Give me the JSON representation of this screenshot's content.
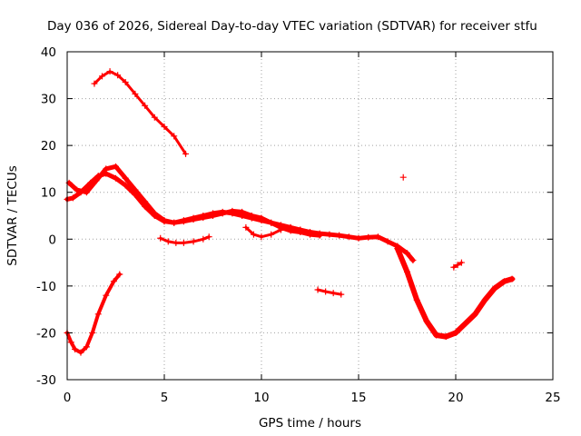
{
  "chart_data": {
    "type": "scatter",
    "title": "Day 036 of 2026, Sidereal Day-to-day VTEC variation (SDTVAR) for receiver stfu",
    "xlabel": "GPS time / hours",
    "ylabel": "SDTVAR / TECUs",
    "xlim": [
      0,
      25
    ],
    "ylim": [
      -30,
      40
    ],
    "xticks": [
      0,
      5,
      10,
      15,
      20,
      25
    ],
    "yticks": [
      -30,
      -20,
      -10,
      0,
      10,
      20,
      30,
      40
    ],
    "x_tick_labels": [
      "0",
      "5",
      "10",
      "15",
      "20",
      "25"
    ],
    "y_tick_labels": [
      "-30",
      "-20",
      "-10",
      "0",
      "10",
      "20",
      "30",
      "40"
    ],
    "grid": true,
    "marker": "+",
    "color": "#ff0000",
    "series": [
      {
        "name": "track-high-arc",
        "width": 3,
        "x": [
          1.4,
          1.8,
          2.2,
          2.6,
          3.0,
          3.5,
          4.0,
          4.5,
          5.0,
          5.5,
          6.1
        ],
        "y": [
          33.2,
          34.8,
          35.8,
          35.0,
          33.5,
          31.0,
          28.5,
          26.0,
          24.0,
          22.0,
          18.2
        ]
      },
      {
        "name": "track-main-upper",
        "width": 5,
        "x": [
          0.0,
          0.3,
          0.7,
          1.2,
          1.6,
          2.0,
          2.5,
          3.0,
          3.5,
          4.0,
          4.5,
          5.0,
          5.5,
          6.0,
          6.5,
          7.0,
          7.5,
          8.0,
          8.5,
          9.0,
          9.5,
          10.0,
          10.5,
          11.0,
          11.5,
          12.0,
          12.5,
          13.0,
          13.5,
          14.0,
          14.5,
          15.0,
          15.5,
          16.0,
          16.5,
          17.0,
          17.5,
          17.8
        ],
        "y": [
          8.5,
          8.8,
          10.0,
          12.0,
          13.5,
          14.0,
          13.0,
          11.5,
          9.5,
          7.0,
          5.0,
          3.8,
          3.5,
          4.0,
          4.5,
          5.0,
          5.5,
          5.8,
          5.5,
          5.0,
          4.5,
          4.0,
          3.5,
          3.0,
          2.5,
          2.0,
          1.5,
          1.2,
          1.0,
          0.8,
          0.5,
          0.2,
          0.4,
          0.5,
          -0.5,
          -1.5,
          -3.0,
          -4.5
        ]
      },
      {
        "name": "track-main-lower",
        "width": 5,
        "x": [
          0.1,
          0.5,
          1.0,
          1.5,
          2.0,
          2.5,
          3.0,
          3.5,
          4.0,
          4.5,
          5.0,
          5.5,
          6.0,
          6.5,
          7.0,
          7.5,
          8.0,
          8.5,
          9.0,
          9.5,
          10.0,
          10.5,
          11.0,
          11.5,
          12.0,
          12.5,
          13.0
        ],
        "y": [
          12.0,
          10.5,
          10.0,
          12.5,
          15.0,
          15.5,
          13.0,
          10.5,
          8.0,
          5.5,
          4.0,
          3.5,
          3.8,
          4.2,
          4.6,
          5.0,
          5.5,
          6.0,
          5.8,
          5.0,
          4.5,
          3.5,
          2.5,
          1.8,
          1.5,
          1.0,
          0.8
        ]
      },
      {
        "name": "track-mid-dip",
        "width": 3,
        "x": [
          9.2,
          9.6,
          10.0,
          10.5,
          11.0,
          11.5,
          12.0
        ],
        "y": [
          2.5,
          1.0,
          0.5,
          1.0,
          2.0,
          2.5,
          2.0
        ]
      },
      {
        "name": "track-low-arc",
        "width": 3,
        "x": [
          4.8,
          5.2,
          5.6,
          6.0,
          6.5,
          7.0,
          7.3
        ],
        "y": [
          0.2,
          -0.5,
          -0.8,
          -0.8,
          -0.5,
          0.0,
          0.5
        ]
      },
      {
        "name": "track-start-rise",
        "width": 4,
        "x": [
          0.0,
          0.2,
          0.4,
          0.7,
          1.0,
          1.3,
          1.6,
          2.0,
          2.4,
          2.7
        ],
        "y": [
          -20.0,
          -22.0,
          -23.5,
          -24.2,
          -23.0,
          -20.0,
          -16.0,
          -12.0,
          -9.0,
          -7.5
        ]
      },
      {
        "name": "track-short-segment",
        "width": 3,
        "x": [
          12.9,
          13.3,
          13.7,
          14.1
        ],
        "y": [
          -10.8,
          -11.2,
          -11.5,
          -11.8
        ]
      },
      {
        "name": "track-deep-dip",
        "width": 6,
        "x": [
          17.0,
          17.5,
          18.0,
          18.5,
          19.0,
          19.5,
          20.0,
          20.5,
          21.0,
          21.5,
          22.0,
          22.5,
          22.9
        ],
        "y": [
          -2.0,
          -7.0,
          -13.0,
          -17.5,
          -20.5,
          -20.8,
          -20.0,
          -18.0,
          -16.0,
          -13.0,
          -10.5,
          -9.0,
          -8.5
        ]
      },
      {
        "name": "track-late-fragment",
        "width": 3,
        "x": [
          19.9,
          20.1,
          20.3
        ],
        "y": [
          -6.0,
          -5.5,
          -5.0
        ]
      }
    ],
    "isolated_points": [
      {
        "x": 17.3,
        "y": 13.2
      }
    ]
  }
}
